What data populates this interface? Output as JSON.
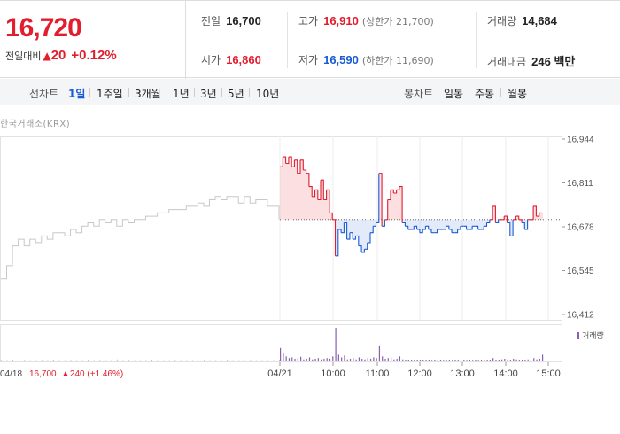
{
  "price": {
    "current": "16,720",
    "change_label": "전일대비",
    "change_arrow": "▲",
    "change_value": "20",
    "change_pct": "+0.12%"
  },
  "stats": {
    "prev_close_label": "전일",
    "prev_close": "16,700",
    "high_label": "고가",
    "high": "16,910",
    "upper_limit": "(상한가 21,700)",
    "volume_label": "거래량",
    "volume": "14,684",
    "open_label": "시가",
    "open": "16,860",
    "low_label": "저가",
    "low": "16,590",
    "lower_limit": "(하한가 11,690)",
    "value_label": "거래대금",
    "value": "246 백만"
  },
  "toolbar": {
    "line_label": "선차트",
    "line_periods": [
      "1일",
      "1주일",
      "3개월",
      "1년",
      "3년",
      "5년",
      "10년"
    ],
    "active_period": "1일",
    "candle_label": "봉차트",
    "candle_periods": [
      "일봉",
      "주봉",
      "월봉"
    ]
  },
  "source": "한국거래소(KRX)",
  "colors": {
    "up": "#e11d2e",
    "down": "#1a5bd6",
    "prev": "#c8c8c8",
    "volume": "#8a5fb0"
  },
  "chart_data": {
    "type": "line",
    "ylim": [
      16412,
      16944
    ],
    "y_ticks": [
      "16,944",
      "16,811",
      "16,678",
      "16,545",
      "16,412"
    ],
    "y_tick_values": [
      16944,
      16811,
      16678,
      16545,
      16412
    ],
    "x_ticks": [
      "04/21",
      "10:00",
      "11:00",
      "12:00",
      "13:00",
      "14:00",
      "15:00"
    ],
    "reference_price": 16700,
    "prev_day": {
      "date_label": "04/18",
      "summary_close": "16,700",
      "summary_change": "▲240 (+1.46%)",
      "values": [
        16520,
        16560,
        16620,
        16640,
        16620,
        16640,
        16630,
        16650,
        16640,
        16660,
        16660,
        16650,
        16670,
        16660,
        16680,
        16690,
        16680,
        16700,
        16690,
        16700,
        16680,
        16700,
        16690,
        16700,
        16700,
        16710,
        16710,
        16720,
        16720,
        16730,
        16730,
        16730,
        16740,
        16740,
        16750,
        16740,
        16760,
        16770,
        16760,
        16770,
        16770,
        16750,
        16770,
        16750,
        16760,
        16760,
        16740,
        16740,
        16700
      ]
    },
    "today": {
      "values": [
        16860,
        16890,
        16870,
        16890,
        16860,
        16880,
        16840,
        16880,
        16850,
        16840,
        16800,
        16770,
        16790,
        16760,
        16820,
        16760,
        16790,
        16720,
        16700,
        16590,
        16670,
        16660,
        16690,
        16640,
        16660,
        16640,
        16650,
        16620,
        16600,
        16610,
        16630,
        16660,
        16680,
        16690,
        16840,
        16680,
        16700,
        16760,
        16790,
        16780,
        16790,
        16800,
        16690,
        16680,
        16670,
        16670,
        16680,
        16670,
        16660,
        16670,
        16680,
        16670,
        16660,
        16660,
        16670,
        16670,
        16670,
        16680,
        16670,
        16660,
        16660,
        16670,
        16680,
        16680,
        16670,
        16670,
        16680,
        16680,
        16670,
        16670,
        16680,
        16690,
        16700,
        16740,
        16690,
        16700,
        16700,
        16710,
        16690,
        16650,
        16700,
        16710,
        16700,
        16690,
        16670,
        16700,
        16700,
        16740,
        16710,
        16720,
        16720
      ]
    },
    "volume": {
      "label": "거래량",
      "prev_day": [
        2,
        1,
        3,
        1,
        2,
        1,
        1,
        2,
        1,
        3,
        1,
        1,
        2,
        1,
        1,
        4,
        1,
        2,
        1,
        1,
        6,
        1,
        2,
        1,
        1,
        1,
        3,
        1,
        1,
        1,
        2,
        1,
        1,
        1,
        1,
        2,
        1,
        1,
        1,
        3,
        1,
        1,
        1,
        2,
        1,
        1,
        1,
        1,
        5
      ],
      "today": [
        40,
        25,
        15,
        10,
        12,
        8,
        10,
        14,
        6,
        8,
        12,
        6,
        8,
        10,
        6,
        8,
        10,
        8,
        15,
        100,
        20,
        12,
        18,
        6,
        8,
        10,
        6,
        12,
        8,
        6,
        10,
        8,
        12,
        10,
        45,
        15,
        8,
        10,
        12,
        6,
        8,
        15,
        6,
        4,
        4,
        3,
        4,
        3,
        3,
        4,
        3,
        3,
        2,
        3,
        2,
        3,
        2,
        3,
        3,
        2,
        3,
        3,
        2,
        3,
        2,
        3,
        2,
        3,
        2,
        3,
        3,
        3,
        4,
        10,
        4,
        5,
        6,
        8,
        6,
        4,
        8,
        6,
        5,
        4,
        5,
        6,
        5,
        10,
        6,
        8,
        20
      ]
    }
  }
}
